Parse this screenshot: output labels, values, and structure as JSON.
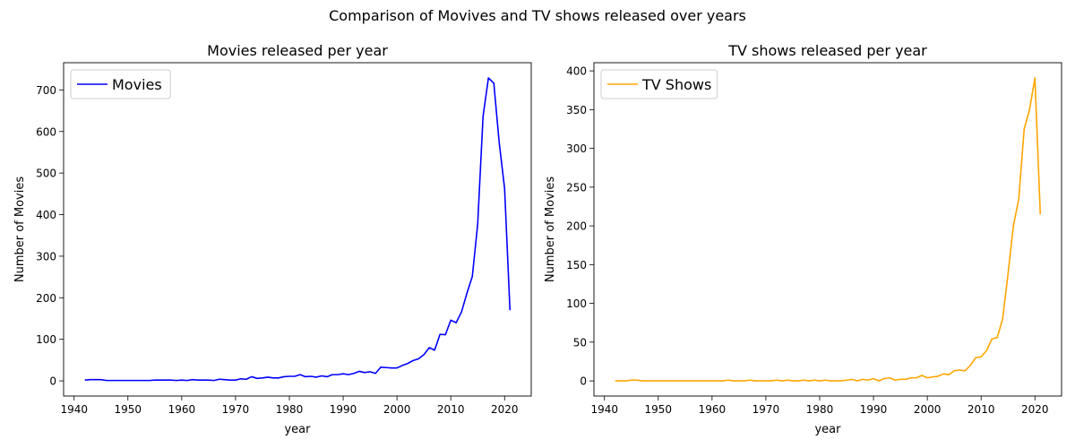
{
  "suptitle": "Comparison of Movives and TV shows released over years",
  "chart_data": [
    {
      "type": "line",
      "title": "Movies released per year",
      "xlabel": "year",
      "ylabel": "Number of Movies",
      "xlim": [
        1938.05,
        2024.95
      ],
      "ylim": [
        -36.45,
        765.45
      ],
      "xticks": [
        1940,
        1950,
        1960,
        1970,
        1980,
        1990,
        2000,
        2010,
        2020
      ],
      "yticks": [
        0,
        100,
        200,
        300,
        400,
        500,
        600,
        700
      ],
      "grid": false,
      "legend": "upper-left",
      "series": [
        {
          "name": "Movies",
          "color": "#0000ff",
          "x": [
            1942,
            1943,
            1944,
            1945,
            1946,
            1947,
            1948,
            1949,
            1950,
            1951,
            1952,
            1953,
            1954,
            1955,
            1956,
            1957,
            1958,
            1959,
            1960,
            1961,
            1962,
            1963,
            1964,
            1965,
            1966,
            1967,
            1968,
            1969,
            1970,
            1971,
            1972,
            1973,
            1974,
            1975,
            1976,
            1977,
            1978,
            1979,
            1980,
            1981,
            1982,
            1983,
            1984,
            1985,
            1986,
            1987,
            1988,
            1989,
            1990,
            1991,
            1992,
            1993,
            1994,
            1995,
            1996,
            1997,
            1998,
            1999,
            2000,
            2001,
            2002,
            2003,
            2004,
            2005,
            2006,
            2007,
            2008,
            2009,
            2010,
            2011,
            2012,
            2013,
            2014,
            2015,
            2016,
            2017,
            2018,
            2019,
            2020,
            2021
          ],
          "y": [
            2,
            3,
            3,
            3,
            1,
            1,
            1,
            1,
            1,
            1,
            1,
            1,
            1,
            2,
            2,
            2,
            2,
            1,
            2,
            1,
            3,
            2,
            2,
            2,
            1,
            4,
            3,
            2,
            2,
            5,
            4,
            10,
            6,
            7,
            9,
            7,
            7,
            10,
            11,
            11,
            15,
            10,
            11,
            9,
            12,
            10,
            15,
            15,
            17,
            15,
            18,
            23,
            20,
            22,
            18,
            33,
            32,
            31,
            31,
            37,
            42,
            49,
            53,
            63,
            80,
            74,
            112,
            111,
            146,
            140,
            166,
            211,
            251,
            377,
            637,
            729,
            716,
            573,
            463,
            170
          ]
        }
      ]
    },
    {
      "type": "line",
      "title": "TV shows released per year",
      "xlabel": "year",
      "ylabel": "Number of Movies",
      "xlim": [
        1938.05,
        2024.95
      ],
      "ylim": [
        -19.55,
        410.55
      ],
      "xticks": [
        1940,
        1950,
        1960,
        1970,
        1980,
        1990,
        2000,
        2010,
        2020
      ],
      "yticks": [
        0,
        50,
        100,
        150,
        200,
        250,
        300,
        350,
        400
      ],
      "grid": false,
      "legend": "upper-left",
      "series": [
        {
          "name": "TV Shows",
          "color": "#ffa500",
          "x": [
            1942,
            1943,
            1944,
            1945,
            1946,
            1947,
            1948,
            1949,
            1950,
            1951,
            1952,
            1953,
            1954,
            1955,
            1956,
            1957,
            1958,
            1959,
            1960,
            1961,
            1962,
            1963,
            1964,
            1965,
            1966,
            1967,
            1968,
            1969,
            1970,
            1971,
            1972,
            1973,
            1974,
            1975,
            1976,
            1977,
            1978,
            1979,
            1980,
            1981,
            1982,
            1983,
            1984,
            1985,
            1986,
            1987,
            1988,
            1989,
            1990,
            1991,
            1992,
            1993,
            1994,
            1995,
            1996,
            1997,
            1998,
            1999,
            2000,
            2001,
            2002,
            2003,
            2004,
            2005,
            2006,
            2007,
            2008,
            2009,
            2010,
            2011,
            2012,
            2013,
            2014,
            2015,
            2016,
            2017,
            2018,
            2019,
            2020,
            2021
          ],
          "y": [
            0,
            0,
            0,
            1,
            1,
            0,
            0,
            0,
            0,
            0,
            0,
            0,
            0,
            0,
            0,
            0,
            0,
            0,
            0,
            0,
            0,
            1,
            0,
            0,
            0,
            1,
            0,
            0,
            0,
            0,
            1,
            0,
            1,
            0,
            0,
            1,
            0,
            1,
            0,
            1,
            0,
            0,
            0,
            1,
            2,
            0,
            2,
            1,
            3,
            0,
            3,
            4,
            1,
            2,
            2,
            4,
            4,
            7,
            4,
            5,
            6,
            9,
            8,
            13,
            14,
            13,
            20,
            30,
            31,
            39,
            54,
            56,
            80,
            138,
            200,
            235,
            325,
            350,
            391,
            215
          ]
        }
      ]
    }
  ]
}
